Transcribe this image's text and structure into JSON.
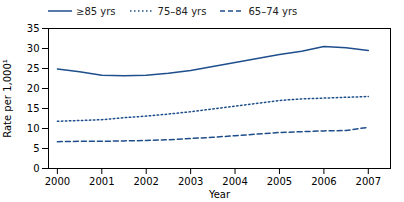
{
  "chart_data": {
    "type": "line",
    "x": [
      2000,
      2000.5,
      2001,
      2001.5,
      2002,
      2002.5,
      2003,
      2003.5,
      2004,
      2004.5,
      2005,
      2005.5,
      2006,
      2006.5,
      2007
    ],
    "series": [
      {
        "name": "≥85 yrs",
        "color": "#1f4e8c",
        "line_style": "solid",
        "values": [
          24.9,
          24.2,
          23.3,
          23.2,
          23.3,
          23.8,
          24.5,
          25.5,
          26.5,
          27.5,
          28.5,
          29.3,
          30.5,
          30.2,
          29.5
        ]
      },
      {
        "name": "75–84 yrs",
        "color": "#1f4e8c",
        "line_style": "dotted",
        "values": [
          11.8,
          12.0,
          12.2,
          12.7,
          13.1,
          13.6,
          14.2,
          14.9,
          15.6,
          16.3,
          17.0,
          17.4,
          17.6,
          17.8,
          18.0
        ]
      },
      {
        "name": "65–74 yrs",
        "color": "#1f4e8c",
        "line_style": "dashed",
        "values": [
          6.7,
          6.8,
          6.8,
          6.9,
          7.0,
          7.2,
          7.5,
          7.8,
          8.2,
          8.6,
          9.0,
          9.2,
          9.4,
          9.5,
          10.3
        ]
      }
    ],
    "xlabel": "Year",
    "ylabel": "Rate per 1,000¹",
    "xlim": [
      1999.8,
      2007.5
    ],
    "xticks": [
      2000,
      2001,
      2002,
      2003,
      2004,
      2005,
      2006,
      2007
    ],
    "ylim": [
      0,
      35
    ],
    "yticks": [
      0,
      5,
      10,
      15,
      20,
      25,
      30,
      35
    ],
    "legend": "upper left"
  }
}
